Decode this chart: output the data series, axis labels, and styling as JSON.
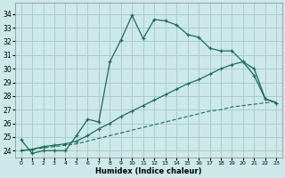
{
  "xlabel": "Humidex (Indice chaleur)",
  "bg_color": "#cce8e8",
  "grid_color": "#aacccc",
  "line_color": "#1a6b5a",
  "xlim": [
    -0.5,
    23.5
  ],
  "ylim": [
    23.5,
    34.8
  ],
  "xtick_labels": [
    "0",
    "1",
    "2",
    "3",
    "4",
    "5",
    "6",
    "7",
    "8",
    "9",
    "10",
    "11",
    "12",
    "13",
    "14",
    "15",
    "16",
    "17",
    "18",
    "19",
    "20",
    "21",
    "22",
    "23"
  ],
  "ytick_labels": [
    "24",
    "25",
    "26",
    "27",
    "28",
    "29",
    "30",
    "31",
    "32",
    "33",
    "34"
  ],
  "xtick_vals": [
    0,
    1,
    2,
    3,
    4,
    5,
    6,
    7,
    8,
    9,
    10,
    11,
    12,
    13,
    14,
    15,
    16,
    17,
    18,
    19,
    20,
    21,
    22,
    23
  ],
  "ytick_vals": [
    24,
    25,
    26,
    27,
    28,
    29,
    30,
    31,
    32,
    33,
    34
  ],
  "line1_x": [
    0,
    1,
    2,
    3,
    4,
    5,
    6,
    7,
    8,
    9,
    10,
    11,
    12,
    13,
    14,
    15,
    16,
    17,
    18,
    19,
    20,
    21,
    22,
    23
  ],
  "line1_y": [
    24.8,
    23.8,
    24.0,
    24.0,
    24.0,
    25.1,
    26.3,
    26.1,
    30.5,
    32.1,
    33.9,
    32.2,
    33.6,
    33.5,
    33.2,
    32.5,
    32.3,
    31.5,
    31.3,
    31.3,
    30.5,
    29.5,
    27.8,
    27.5
  ],
  "line2_x": [
    0,
    1,
    2,
    3,
    4,
    5,
    6,
    7,
    8,
    9,
    10,
    11,
    12,
    13,
    14,
    15,
    16,
    17,
    18,
    19,
    20,
    21,
    22,
    23
  ],
  "line2_y": [
    24.0,
    24.1,
    24.3,
    24.4,
    24.5,
    24.7,
    25.1,
    25.6,
    26.0,
    26.5,
    26.9,
    27.3,
    27.7,
    28.1,
    28.5,
    28.9,
    29.2,
    29.6,
    30.0,
    30.3,
    30.5,
    30.0,
    27.8,
    27.5
  ],
  "line3_x": [
    0,
    1,
    2,
    3,
    4,
    5,
    6,
    7,
    8,
    9,
    10,
    11,
    12,
    13,
    14,
    15,
    16,
    17,
    18,
    19,
    20,
    21,
    22,
    23
  ],
  "line3_y": [
    24.0,
    24.1,
    24.2,
    24.3,
    24.4,
    24.5,
    24.7,
    24.9,
    25.1,
    25.3,
    25.5,
    25.7,
    25.9,
    26.1,
    26.3,
    26.5,
    26.7,
    26.9,
    27.0,
    27.2,
    27.3,
    27.4,
    27.5,
    27.6
  ]
}
